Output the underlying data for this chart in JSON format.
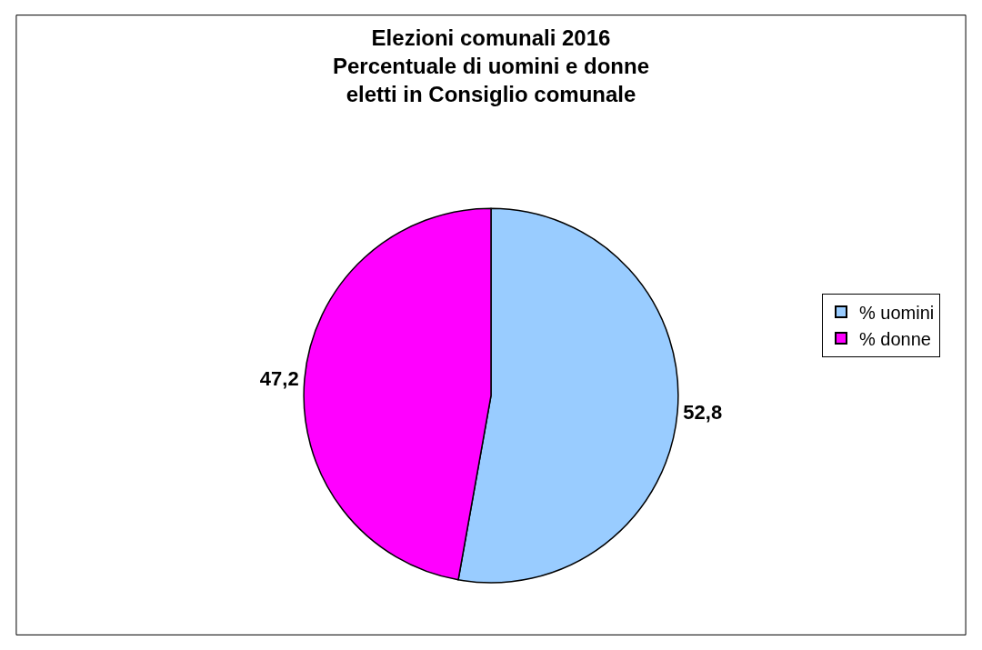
{
  "chart_data": {
    "type": "pie",
    "title": "Elezioni comunali 2016\nPercentuale di uomini e donne\neletti in Consiglio comunale",
    "categories": [
      "% uomini",
      "% donne"
    ],
    "values": [
      52.8,
      47.2
    ],
    "colors": [
      "#99ccff",
      "#ff00ff"
    ],
    "value_labels": [
      "52,8",
      "47,2"
    ],
    "legend": "right"
  }
}
